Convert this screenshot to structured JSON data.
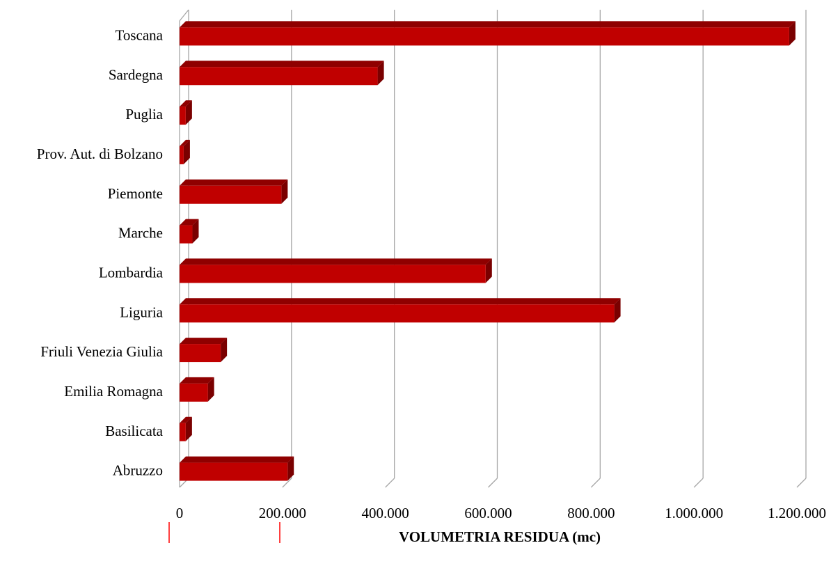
{
  "chart_data": {
    "type": "bar",
    "orientation": "horizontal",
    "style": "3d",
    "categories": [
      "Toscana",
      "Sardegna",
      "Puglia",
      "Prov. Aut. di Bolzano",
      "Piemonte",
      "Marche",
      "Lombardia",
      "Liguria",
      "Friuli Venezia Giulia",
      "Emilia Romagna",
      "Basilicata",
      "Abruzzo"
    ],
    "values": [
      1185000,
      385000,
      12000,
      8000,
      198000,
      25000,
      595000,
      845000,
      80000,
      55000,
      12000,
      210000
    ],
    "xlim": [
      0,
      1200000
    ],
    "xticks": [
      0,
      200000,
      400000,
      600000,
      800000,
      1000000,
      1200000
    ],
    "xtick_labels": [
      "0",
      "200.000",
      "400.000",
      "600.000",
      "800.000",
      "1.000.000",
      "1.200.000"
    ],
    "xlabel": "VOLUMETRIA RESIDUA (mc)",
    "grid": "vertical",
    "legend": "none",
    "colors": {
      "bar_front": "#c00000",
      "bar_top": "#8f0000",
      "bar_side": "#7a0000",
      "grid": "#a6a6a6",
      "marker": "#ff0000"
    }
  }
}
